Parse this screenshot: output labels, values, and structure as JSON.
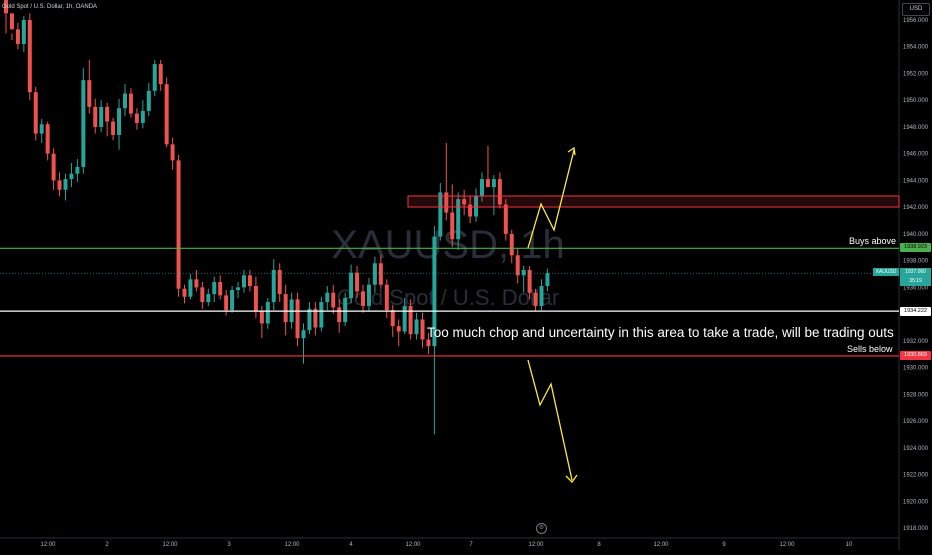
{
  "symbol_line": "Gold Spot / U.S. Dollar, 1h, OANDA",
  "currency_badge": "USD",
  "watermark": {
    "ticker": "XAUUSD, 1h",
    "name": "Gold Spot / U.S. Dollar"
  },
  "colors": {
    "up": "#26a69a",
    "down": "#ef5350",
    "buy": "#4caf50",
    "sell": "#f23645",
    "arrow": "#ffeb3b",
    "axis_text": "#b2b5be",
    "grid": "#131722"
  },
  "levels": {
    "buy": {
      "label": "Buys above",
      "price": "1938.923"
    },
    "mid": {
      "price": "1934.222"
    },
    "sell": {
      "label": "Sells below",
      "price": "1930.869"
    }
  },
  "live": {
    "symbol": "XAUUSD",
    "price": "1937.060",
    "countdown": "35:19"
  },
  "note": "Too much chop and uncertainty in this area to take a trade, will be trading outs",
  "price_axis": [
    "1956.000",
    "1954.000",
    "1952.000",
    "1950.000",
    "1948.000",
    "1946.000",
    "1944.000",
    "1942.000",
    "1940.000",
    "1938.000",
    "1936.000",
    "1934.000",
    "1932.000",
    "1930.000",
    "1928.000",
    "1926.000",
    "1924.000",
    "1922.000",
    "1920.000",
    "1918.000"
  ],
  "time_axis": [
    "12:00",
    "2",
    "12:00",
    "3",
    "12:00",
    "4",
    "12:00",
    "7",
    "12:00",
    "8",
    "12:00",
    "9",
    "12:00",
    "10"
  ],
  "settings_icon": "gear-icon"
}
